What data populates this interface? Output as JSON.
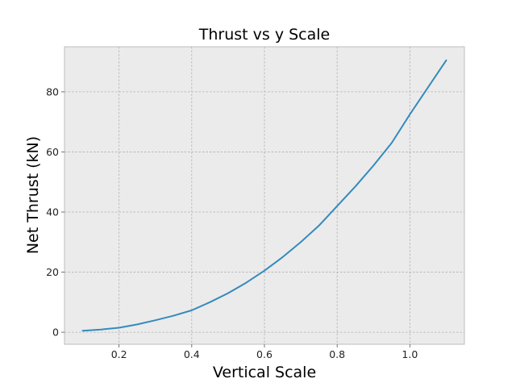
{
  "chart_data": {
    "type": "line",
    "title": "Thrust vs y Scale",
    "xlabel": "Vertical Scale",
    "ylabel": "Net Thrust (kN)",
    "xlim": [
      0.05,
      1.15
    ],
    "ylim": [
      -4,
      95
    ],
    "xticks": [
      0.2,
      0.4,
      0.6,
      0.8,
      1.0
    ],
    "xtick_labels": [
      "0.2",
      "0.4",
      "0.6",
      "0.8",
      "1.0"
    ],
    "yticks": [
      0,
      20,
      40,
      60,
      80
    ],
    "ytick_labels": [
      "0",
      "20",
      "40",
      "60",
      "80"
    ],
    "grid": true,
    "series": [
      {
        "color": "#348ABD",
        "x": [
          0.1,
          0.15,
          0.2,
          0.25,
          0.3,
          0.35,
          0.4,
          0.45,
          0.5,
          0.55,
          0.6,
          0.65,
          0.7,
          0.75,
          0.8,
          0.85,
          0.9,
          0.95,
          1.0,
          1.05,
          1.1
        ],
        "y": [
          0.5,
          0.9,
          1.5,
          2.6,
          4.0,
          5.5,
          7.3,
          10.0,
          13.0,
          16.5,
          20.5,
          25.0,
          30.0,
          35.5,
          42.0,
          48.5,
          55.5,
          63.0,
          72.5,
          81.5,
          90.5
        ]
      }
    ]
  },
  "colors": {
    "plot_background": "#EBEBEB",
    "grid": "#B0B0B0",
    "line": "#348ABD"
  }
}
